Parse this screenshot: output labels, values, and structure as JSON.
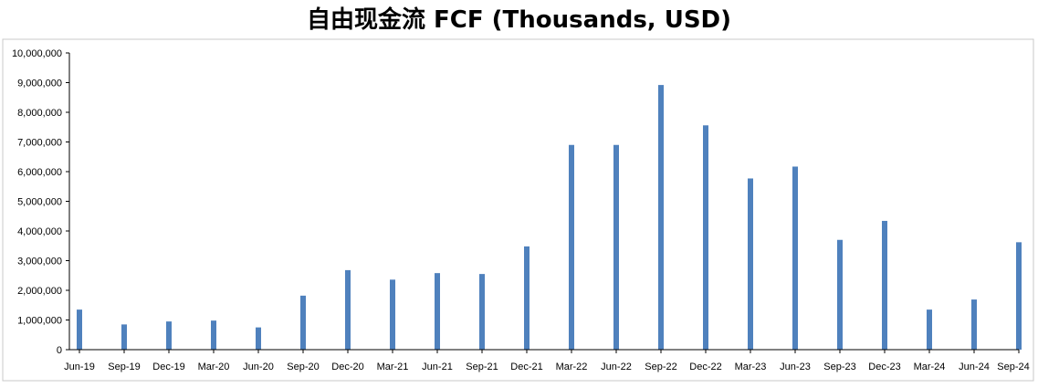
{
  "chart_data": {
    "type": "bar",
    "title": "自由现金流 FCF (Thousands, USD)",
    "xlabel": "",
    "ylabel": "",
    "ylim": [
      0,
      10000000
    ],
    "yticks": [
      "0",
      "1,000,000",
      "2,000,000",
      "3,000,000",
      "4,000,000",
      "5,000,000",
      "6,000,000",
      "7,000,000",
      "8,000,000",
      "9,000,000",
      "10,000,000"
    ],
    "grid": false,
    "legend": "none",
    "bar_color": "#4f81bd",
    "x_labels": [
      "Jun-19",
      "Sep-19",
      "Dec-19",
      "Mar-20",
      "Jun-20",
      "Sep-20",
      "Dec-20",
      "Mar-21",
      "Jun-21",
      "Sep-21",
      "Dec-21",
      "Mar-22",
      "Jun-22",
      "Sep-22",
      "Dec-22",
      "Mar-23",
      "Jun-23",
      "Sep-23",
      "Dec-23",
      "Mar-24",
      "Jun-24",
      "Sep-24"
    ],
    "categories": [
      "Jun-19",
      "Sep-19",
      "Dec-19",
      "Mar-20",
      "Jun-20",
      "Sep-20",
      "Dec-20",
      "Mar-21",
      "Jun-21",
      "Sep-21",
      "Dec-21",
      "Mar-22",
      "Jun-22",
      "Sep-22",
      "Dec-22",
      "Mar-23",
      "Jun-23",
      "Sep-23",
      "Dec-23",
      "Mar-24",
      "Jun-24",
      "Sep-24"
    ],
    "values": [
      1350000,
      850000,
      950000,
      980000,
      750000,
      1820000,
      2680000,
      2360000,
      2580000,
      2550000,
      3480000,
      6900000,
      6900000,
      8920000,
      7560000,
      5770000,
      6170000,
      3700000,
      4340000,
      1350000,
      1690000,
      3620000
    ]
  }
}
